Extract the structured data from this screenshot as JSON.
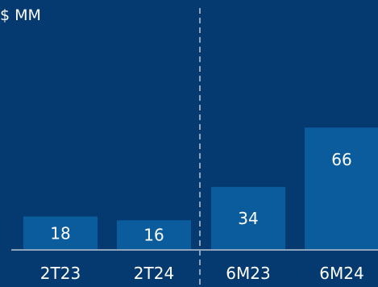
{
  "chart_data": {
    "type": "bar",
    "ylabel": "$ MM",
    "categories": [
      "2T23",
      "2T24",
      "6M23",
      "6M24"
    ],
    "values": [
      18,
      16,
      34,
      66
    ],
    "data_labels": [
      "18",
      "16",
      "34",
      "66"
    ],
    "ylim": [
      0,
      100
    ],
    "grid": false,
    "legend": "none",
    "divider_after_category": 2
  },
  "colors": {
    "background": "#053a70",
    "bar": "#0b5c9c",
    "axis": "#8ea4bd",
    "divider": "#8ea4bd",
    "text": "#ffffff"
  }
}
